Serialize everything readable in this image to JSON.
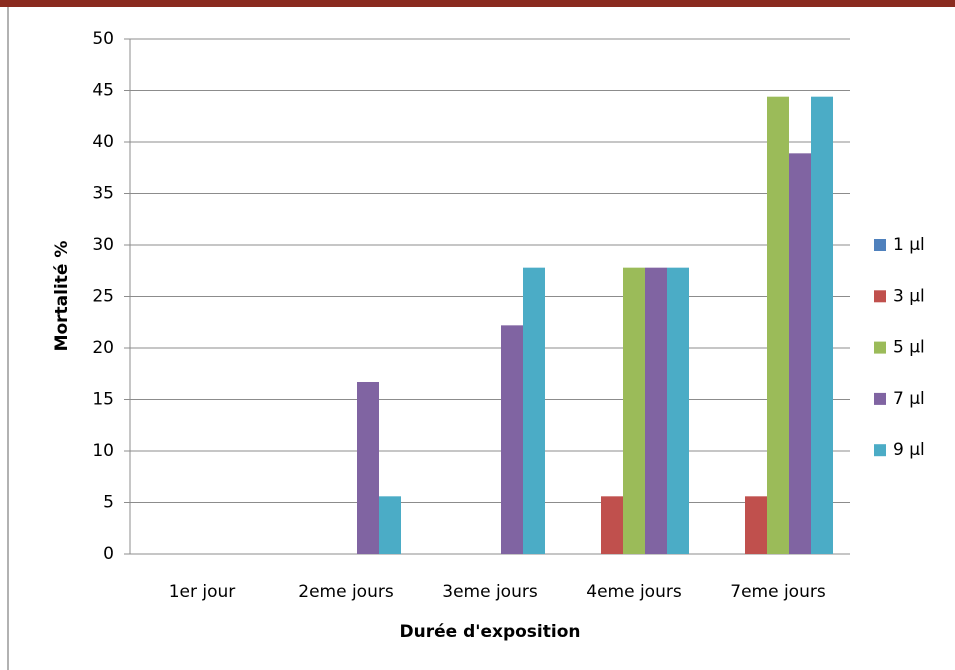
{
  "chart_data": {
    "type": "bar",
    "xlabel": "Durée d'exposition",
    "ylabel": "Mortalité %",
    "categories": [
      "1er jour",
      "2eme jours",
      "3eme jours",
      "4eme jours",
      "7eme jours"
    ],
    "series": [
      {
        "name": "1 µl",
        "color": "#4f81bd",
        "values": [
          0,
          0,
          0,
          0,
          0
        ]
      },
      {
        "name": "3 µl",
        "color": "#c0504d",
        "values": [
          0,
          0,
          0,
          5.6,
          5.6
        ]
      },
      {
        "name": "5 µl",
        "color": "#9bbb59",
        "values": [
          0,
          0,
          0,
          27.8,
          44.4
        ]
      },
      {
        "name": "7 µl",
        "color": "#8064a2",
        "values": [
          0,
          16.7,
          22.2,
          27.8,
          38.9
        ]
      },
      {
        "name": "9 µl",
        "color": "#4bacc6",
        "values": [
          0,
          5.6,
          27.8,
          27.8,
          44.4
        ]
      }
    ],
    "ylim": [
      0,
      50
    ],
    "yticks": [
      0,
      5,
      10,
      15,
      20,
      25,
      30,
      35,
      40,
      45,
      50
    ],
    "grid": true,
    "legend": "right"
  }
}
